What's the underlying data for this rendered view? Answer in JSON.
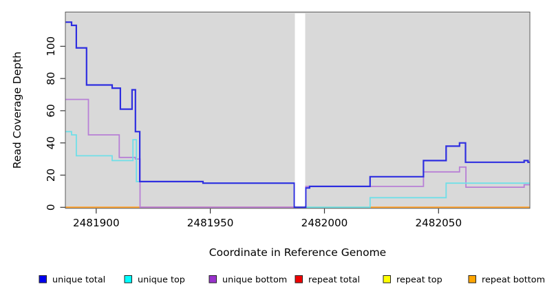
{
  "chart_data": {
    "type": "line",
    "subtype": "step-after",
    "title": "",
    "xlabel": "Coordinate in Reference Genome",
    "ylabel": "Read Coverage Depth",
    "x_domain": [
      2481886.5,
      2482090
    ],
    "y_domain": [
      0,
      116
    ],
    "x_ticks": [
      2481900,
      2481950,
      2482000,
      2482050
    ],
    "y_ticks": [
      0,
      20,
      40,
      60,
      80,
      100
    ],
    "grid": "off",
    "plot_bg": "#d9d9d9",
    "gap": {
      "x0": 2481986.8,
      "x1": 2481991.8
    },
    "series": [
      {
        "name": "unique total",
        "color": "#2e2ee0",
        "width": 2.2,
        "points": [
          [
            2481886.5,
            115
          ],
          [
            2481889.2,
            113
          ],
          [
            2481891.3,
            99
          ],
          [
            2481895.8,
            76
          ],
          [
            2481907.0,
            74
          ],
          [
            2481910.6,
            61
          ],
          [
            2481915.7,
            73
          ],
          [
            2481917.2,
            47
          ],
          [
            2481919.1,
            16
          ],
          [
            2481946.8,
            15
          ],
          [
            2481986.8,
            0
          ],
          [
            2481991.8,
            12
          ],
          [
            2481993.5,
            13
          ],
          [
            2482020.0,
            19
          ],
          [
            2482043.4,
            29
          ],
          [
            2482053.3,
            38
          ],
          [
            2482059.2,
            40
          ],
          [
            2482061.8,
            28
          ],
          [
            2482087.5,
            29
          ],
          [
            2482089.2,
            28
          ]
        ]
      },
      {
        "name": "unique top",
        "color": "#6fdfe8",
        "width": 1.8,
        "points": [
          [
            2481886.5,
            47
          ],
          [
            2481889.2,
            45
          ],
          [
            2481891.3,
            32
          ],
          [
            2481907.0,
            29
          ],
          [
            2481916.1,
            42
          ],
          [
            2481917.6,
            16
          ],
          [
            2481946.8,
            15
          ],
          [
            2481986.8,
            0
          ],
          [
            2482020.0,
            6
          ],
          [
            2482053.3,
            15
          ]
        ]
      },
      {
        "name": "unique bottom",
        "color": "#b77fd6",
        "width": 1.8,
        "points": [
          [
            2481886.5,
            67
          ],
          [
            2481896.6,
            45
          ],
          [
            2481910.1,
            31
          ],
          [
            2481917.2,
            30
          ],
          [
            2481919.2,
            0
          ],
          [
            2481991.8,
            13
          ],
          [
            2482043.4,
            22
          ],
          [
            2482059.2,
            25
          ],
          [
            2482062.0,
            12.5
          ],
          [
            2482087.5,
            14
          ]
        ]
      },
      {
        "name": "repeat total",
        "color": "#ee0000",
        "width": 1.8,
        "skip_draw": true,
        "points": [
          [
            2481886.5,
            0
          ]
        ]
      },
      {
        "name": "repeat top",
        "color": "#ffff00",
        "width": 1.8,
        "skip_draw": true,
        "points": [
          [
            2481886.5,
            0
          ]
        ]
      },
      {
        "name": "repeat bottom",
        "color": "#ffa500",
        "width": 1.8,
        "skip_draw": true,
        "points": [
          [
            2481886.5,
            0
          ]
        ]
      }
    ],
    "baseline_segments": [
      {
        "x0": 2481886.5,
        "x1": 2481919.2,
        "color": "#ffa028"
      },
      {
        "x0": 2481919.2,
        "x1": 2481986.8,
        "color": "#d9547a"
      },
      {
        "x0": 2481991.8,
        "x1": 2482020.0,
        "color": "#93cf96"
      },
      {
        "x0": 2482020.0,
        "x1": 2482090.0,
        "color": "#ffa028"
      }
    ],
    "legend_position": "bottom",
    "legend": [
      {
        "label": "unique total",
        "swatch": "#0000ee"
      },
      {
        "label": "unique top",
        "swatch": "#00ffff"
      },
      {
        "label": "unique bottom",
        "swatch": "#9932cc"
      },
      {
        "label": "repeat total",
        "swatch": "#ee0000"
      },
      {
        "label": "repeat top",
        "swatch": "#ffff00"
      },
      {
        "label": "repeat bottom",
        "swatch": "#ffa500"
      }
    ]
  }
}
